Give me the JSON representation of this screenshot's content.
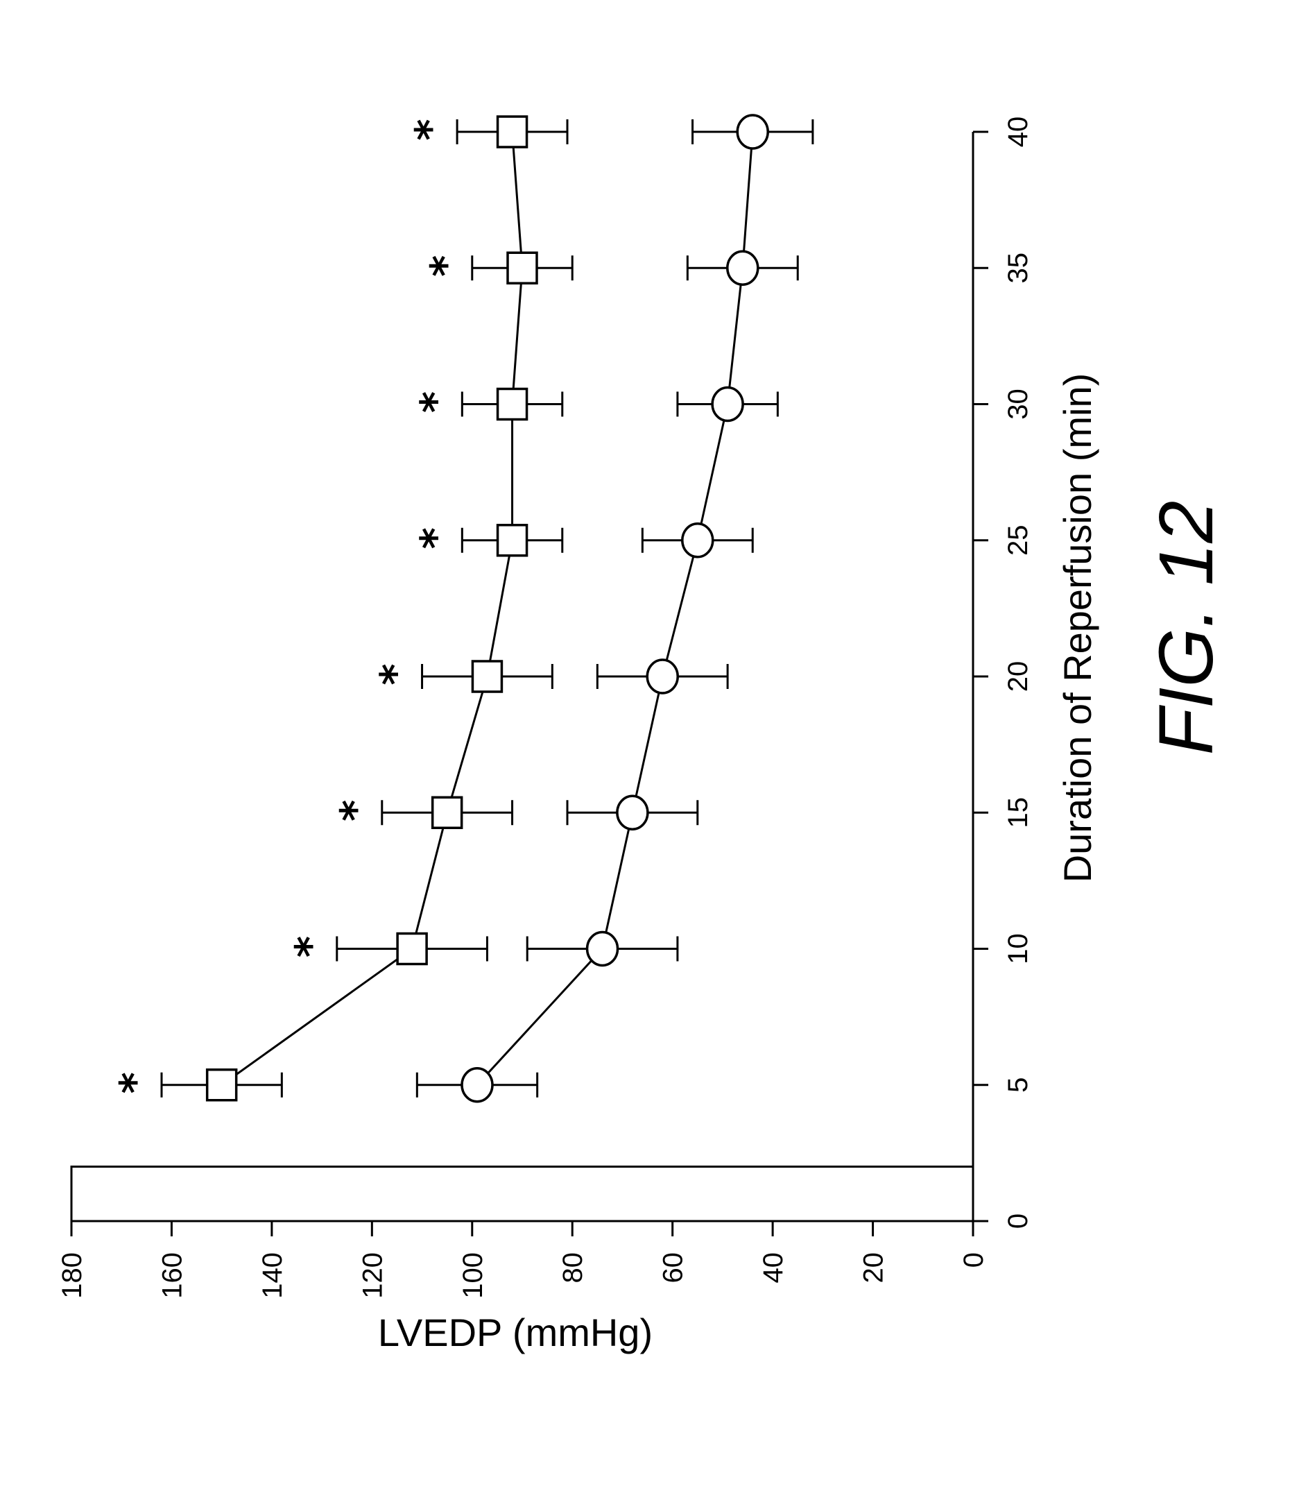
{
  "chart_data": {
    "type": "line",
    "figure_label": "FIG. 12",
    "xlabel": "Duration of Reperfusion (min)",
    "ylabel": "LVEDP (mmHg)",
    "xlim": [
      0,
      40
    ],
    "ylim": [
      0,
      180
    ],
    "x_ticks": [
      "0",
      "5",
      "10",
      "15",
      "20",
      "25",
      "30",
      "35",
      "40"
    ],
    "y_ticks": [
      "0",
      "20",
      "40",
      "60",
      "80",
      "100",
      "120",
      "140",
      "160",
      "180"
    ],
    "ischemia_bar": {
      "x_start": 0,
      "x_end": 2,
      "value": 180
    },
    "x": [
      5,
      10,
      15,
      20,
      25,
      30,
      35,
      40
    ],
    "series": [
      {
        "marker": "square",
        "values": [
          150,
          112,
          105,
          97,
          92,
          92,
          90,
          92
        ],
        "error": [
          12,
          15,
          13,
          13,
          10,
          10,
          10,
          11
        ],
        "significance": [
          "*",
          "*",
          "*",
          "*",
          "*",
          "*",
          "*",
          "*"
        ]
      },
      {
        "marker": "circle",
        "values": [
          99,
          74,
          68,
          62,
          55,
          49,
          46,
          44
        ],
        "error": [
          12,
          15,
          13,
          13,
          11,
          10,
          11,
          12
        ]
      }
    ],
    "grid": false,
    "legend": "none"
  }
}
